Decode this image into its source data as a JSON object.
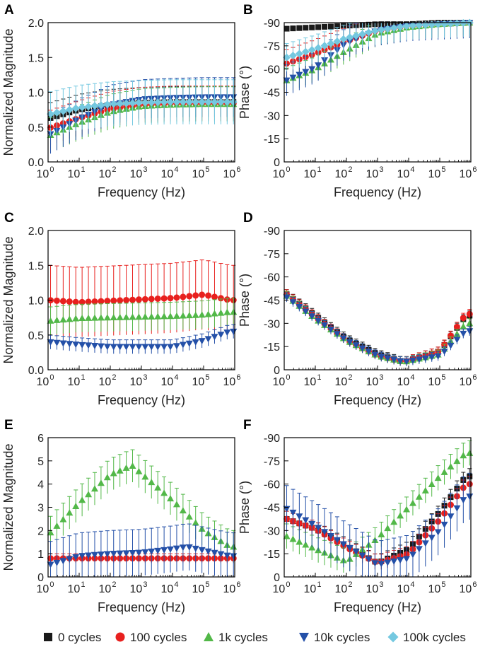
{
  "legend": [
    {
      "label": "0 cycles",
      "color": "#1a1a1a",
      "marker": "square",
      "icon": "black-square-icon"
    },
    {
      "label": "100 cycles",
      "color": "#e8201e",
      "marker": "circle",
      "icon": "red-circle-icon"
    },
    {
      "label": "1k cycles",
      "color": "#52b848",
      "marker": "triangle-up",
      "icon": "green-triangle-up-icon"
    },
    {
      "label": "10k cycles",
      "color": "#2450a8",
      "marker": "triangle-down",
      "icon": "blue-triangle-down-icon"
    },
    {
      "label": "100k cycles",
      "color": "#74c8e0",
      "marker": "diamond",
      "icon": "cyan-diamond-icon"
    }
  ],
  "chart_data": [
    {
      "panel": "A",
      "type": "scatter",
      "xscale": "log",
      "xlabel": "Frequency (Hz)",
      "ylabel": "Normalized Magnitude",
      "xlim": [
        1,
        1000000
      ],
      "ylim": [
        0,
        2.0
      ],
      "yticks": [
        "0.0",
        "0.5",
        "1.0",
        "1.5",
        "2.0"
      ],
      "yvalues": [
        0,
        0.5,
        1,
        1.5,
        2
      ],
      "series": [
        {
          "name": "0 cycles",
          "err": 0.22,
          "points": [
            [
              1,
              0.62
            ],
            [
              10,
              0.75
            ],
            [
              100,
              0.82
            ],
            [
              1000,
              0.85
            ],
            [
              10000,
              0.86
            ],
            [
              100000,
              0.86
            ],
            [
              1000000,
              0.86
            ]
          ]
        },
        {
          "name": "100 cycles",
          "err": 0.25,
          "points": [
            [
              1,
              0.48
            ],
            [
              10,
              0.63
            ],
            [
              100,
              0.76
            ],
            [
              1000,
              0.82
            ],
            [
              10000,
              0.84
            ],
            [
              100000,
              0.84
            ],
            [
              1000000,
              0.84
            ]
          ]
        },
        {
          "name": "1k cycles",
          "err": 0.25,
          "points": [
            [
              1,
              0.37
            ],
            [
              10,
              0.56
            ],
            [
              100,
              0.72
            ],
            [
              1000,
              0.8
            ],
            [
              10000,
              0.82
            ],
            [
              100000,
              0.83
            ],
            [
              1000000,
              0.83
            ]
          ]
        },
        {
          "name": "10k cycles",
          "err": 0.28,
          "points": [
            [
              1,
              0.38
            ],
            [
              10,
              0.62
            ],
            [
              100,
              0.82
            ],
            [
              1000,
              0.9
            ],
            [
              10000,
              0.92
            ],
            [
              100000,
              0.93
            ],
            [
              1000000,
              0.93
            ]
          ]
        },
        {
          "name": "100k cycles",
          "err": 0.32,
          "points": [
            [
              1,
              0.68
            ],
            [
              10,
              0.78
            ],
            [
              100,
              0.83
            ],
            [
              1000,
              0.85
            ],
            [
              10000,
              0.86
            ],
            [
              100000,
              0.86
            ],
            [
              1000000,
              0.86
            ]
          ]
        }
      ]
    },
    {
      "panel": "B",
      "type": "scatter",
      "xscale": "log",
      "xlabel": "Frequency (Hz)",
      "ylabel": "Phase (°)",
      "xlim": [
        1,
        1000000
      ],
      "ylim": [
        0,
        -90
      ],
      "yticks": [
        "0",
        "-15",
        "-30",
        "-45",
        "-60",
        "-75",
        "-90"
      ],
      "yvalues": [
        0,
        -15,
        -30,
        -45,
        -60,
        -75,
        -90
      ],
      "series": [
        {
          "name": "0 cycles",
          "err": 1.5,
          "points": [
            [
              1,
              -86
            ],
            [
              10,
              -87
            ],
            [
              100,
              -88
            ],
            [
              1000,
              -89
            ],
            [
              10000,
              -89
            ],
            [
              100000,
              -90
            ],
            [
              1000000,
              -90
            ]
          ]
        },
        {
          "name": "100 cycles",
          "err": 9,
          "points": [
            [
              1,
              -63
            ],
            [
              10,
              -70
            ],
            [
              100,
              -78
            ],
            [
              1000,
              -85
            ],
            [
              10000,
              -88
            ],
            [
              100000,
              -89
            ],
            [
              1000000,
              -90
            ]
          ]
        },
        {
          "name": "1k cycles",
          "err": 8,
          "points": [
            [
              1,
              -52
            ],
            [
              10,
              -60
            ],
            [
              100,
              -72
            ],
            [
              1000,
              -83
            ],
            [
              10000,
              -87
            ],
            [
              100000,
              -89
            ],
            [
              1000000,
              -90
            ]
          ]
        },
        {
          "name": "10k cycles",
          "err": 10,
          "points": [
            [
              1,
              -52
            ],
            [
              10,
              -61
            ],
            [
              100,
              -77
            ],
            [
              1000,
              -85
            ],
            [
              10000,
              -88
            ],
            [
              100000,
              -89
            ],
            [
              1000000,
              -90
            ]
          ]
        },
        {
          "name": "100k cycles",
          "err": 9,
          "points": [
            [
              1,
              -67
            ],
            [
              10,
              -73
            ],
            [
              100,
              -80
            ],
            [
              1000,
              -85
            ],
            [
              10000,
              -88
            ],
            [
              100000,
              -89
            ],
            [
              1000000,
              -90
            ]
          ]
        }
      ]
    },
    {
      "panel": "C",
      "type": "scatter",
      "xscale": "log",
      "xlabel": "Frequency (Hz)",
      "ylabel": "Normalized Magnitude",
      "xlim": [
        1,
        1000000
      ],
      "ylim": [
        0,
        2.0
      ],
      "yticks": [
        "0.0",
        "0.5",
        "1.0",
        "1.5",
        "2.0"
      ],
      "yvalues": [
        0,
        0.5,
        1,
        1.5,
        2
      ],
      "series": [
        {
          "name": "100 cycles",
          "err": 0.5,
          "points": [
            [
              1,
              1.0
            ],
            [
              10,
              0.97
            ],
            [
              100,
              0.99
            ],
            [
              1000,
              1.01
            ],
            [
              10000,
              1.03
            ],
            [
              100000,
              1.08
            ],
            [
              700000,
              1.0
            ]
          ]
        },
        {
          "name": "1k cycles",
          "err": 0.2,
          "points": [
            [
              1,
              0.7
            ],
            [
              10,
              0.74
            ],
            [
              100,
              0.75
            ],
            [
              1000,
              0.76
            ],
            [
              10000,
              0.77
            ],
            [
              100000,
              0.79
            ],
            [
              700000,
              0.83
            ]
          ]
        },
        {
          "name": "10k cycles",
          "err": 0.1,
          "points": [
            [
              1,
              0.4
            ],
            [
              10,
              0.36
            ],
            [
              100,
              0.33
            ],
            [
              1000,
              0.33
            ],
            [
              10000,
              0.33
            ],
            [
              100000,
              0.42
            ],
            [
              700000,
              0.55
            ]
          ]
        }
      ]
    },
    {
      "panel": "D",
      "type": "scatter",
      "xscale": "log",
      "xlabel": "Frequency (Hz)",
      "ylabel": "Phase (°)",
      "xlim": [
        1,
        1000000
      ],
      "ylim": [
        0,
        -90
      ],
      "yticks": [
        "0",
        "-15",
        "-30",
        "-45",
        "-60",
        "-75",
        "-90"
      ],
      "yvalues": [
        0,
        -15,
        -30,
        -45,
        -60,
        -75,
        -90
      ],
      "series": [
        {
          "name": "0 cycles",
          "err": 3,
          "points": [
            [
              1,
              -50
            ],
            [
              10,
              -35
            ],
            [
              100,
              -20
            ],
            [
              1000,
              -10
            ],
            [
              7000,
              -5
            ],
            [
              100000,
              -12
            ],
            [
              700000,
              -35
            ]
          ]
        },
        {
          "name": "100 cycles",
          "err": 3,
          "points": [
            [
              1,
              -50
            ],
            [
              10,
              -34
            ],
            [
              100,
              -19
            ],
            [
              1000,
              -9
            ],
            [
              7000,
              -5
            ],
            [
              100000,
              -12
            ],
            [
              700000,
              -36
            ]
          ]
        },
        {
          "name": "1k cycles",
          "err": 3,
          "points": [
            [
              1,
              -49
            ],
            [
              10,
              -33
            ],
            [
              100,
              -19
            ],
            [
              1000,
              -9
            ],
            [
              7000,
              -5
            ],
            [
              100000,
              -10
            ],
            [
              700000,
              -30
            ]
          ]
        },
        {
          "name": "10k cycles",
          "err": 3,
          "points": [
            [
              1,
              -48
            ],
            [
              10,
              -33
            ],
            [
              100,
              -19
            ],
            [
              1000,
              -9
            ],
            [
              7000,
              -5
            ],
            [
              100000,
              -9
            ],
            [
              700000,
              -25
            ]
          ]
        }
      ]
    },
    {
      "panel": "E",
      "type": "scatter",
      "xscale": "log",
      "xlabel": "Frequency (Hz)",
      "ylabel": "Normalized Magnitude",
      "xlim": [
        1,
        1000000
      ],
      "ylim": [
        0,
        6
      ],
      "yticks": [
        "0",
        "1",
        "2",
        "3",
        "4",
        "5",
        "6"
      ],
      "yvalues": [
        0,
        1,
        2,
        3,
        4,
        5,
        6
      ],
      "series": [
        {
          "name": "100 cycles",
          "err": 0.2,
          "points": [
            [
              1,
              0.8
            ],
            [
              10,
              0.8
            ],
            [
              100,
              0.8
            ],
            [
              1000,
              0.8
            ],
            [
              10000,
              0.8
            ],
            [
              100000,
              0.8
            ],
            [
              700000,
              0.8
            ]
          ]
        },
        {
          "name": "1k cycles",
          "err": 0.7,
          "points": [
            [
              1,
              1.8
            ],
            [
              10,
              3.2
            ],
            [
              100,
              4.4
            ],
            [
              500,
              4.8
            ],
            [
              10000,
              3.3
            ],
            [
              100000,
              2.0
            ],
            [
              700000,
              1.3
            ]
          ]
        },
        {
          "name": "10k cycles",
          "err": 1.0,
          "points": [
            [
              1,
              0.5
            ],
            [
              10,
              0.9
            ],
            [
              100,
              1.0
            ],
            [
              1000,
              1.05
            ],
            [
              10000,
              1.2
            ],
            [
              30000,
              1.3
            ],
            [
              700000,
              0.9
            ]
          ]
        }
      ]
    },
    {
      "panel": "F",
      "type": "scatter",
      "xscale": "log",
      "xlabel": "Frequency (Hz)",
      "ylabel": "Phase (°)",
      "xlim": [
        1,
        1000000
      ],
      "ylim": [
        0,
        -90
      ],
      "yticks": [
        "0",
        "-15",
        "-30",
        "-45",
        "-60",
        "-75",
        "-90"
      ],
      "yvalues": [
        0,
        -15,
        -30,
        -45,
        -60,
        -75,
        -90
      ],
      "series": [
        {
          "name": "0 cycles",
          "err": 5,
          "points": [
            [
              1,
              -38
            ],
            [
              10,
              -31
            ],
            [
              100,
              -20
            ],
            [
              1000,
              -9
            ],
            [
              10000,
              -18
            ],
            [
              100000,
              -42
            ],
            [
              700000,
              -65
            ]
          ]
        },
        {
          "name": "100 cycles",
          "err": 5,
          "points": [
            [
              1,
              -38
            ],
            [
              10,
              -31
            ],
            [
              100,
              -19
            ],
            [
              1000,
              -9
            ],
            [
              10000,
              -15
            ],
            [
              100000,
              -37
            ],
            [
              700000,
              -60
            ]
          ]
        },
        {
          "name": "1k cycles",
          "err": 8,
          "points": [
            [
              1,
              -27
            ],
            [
              10,
              -18
            ],
            [
              100,
              -10
            ],
            [
              1000,
              -25
            ],
            [
              10000,
              -45
            ],
            [
              100000,
              -65
            ],
            [
              700000,
              -80
            ]
          ]
        },
        {
          "name": "10k cycles",
          "err": 15,
          "points": [
            [
              1,
              -45
            ],
            [
              10,
              -33
            ],
            [
              100,
              -20
            ],
            [
              1000,
              -8
            ],
            [
              10000,
              -12
            ],
            [
              100000,
              -30
            ],
            [
              700000,
              -52
            ]
          ]
        }
      ]
    }
  ]
}
